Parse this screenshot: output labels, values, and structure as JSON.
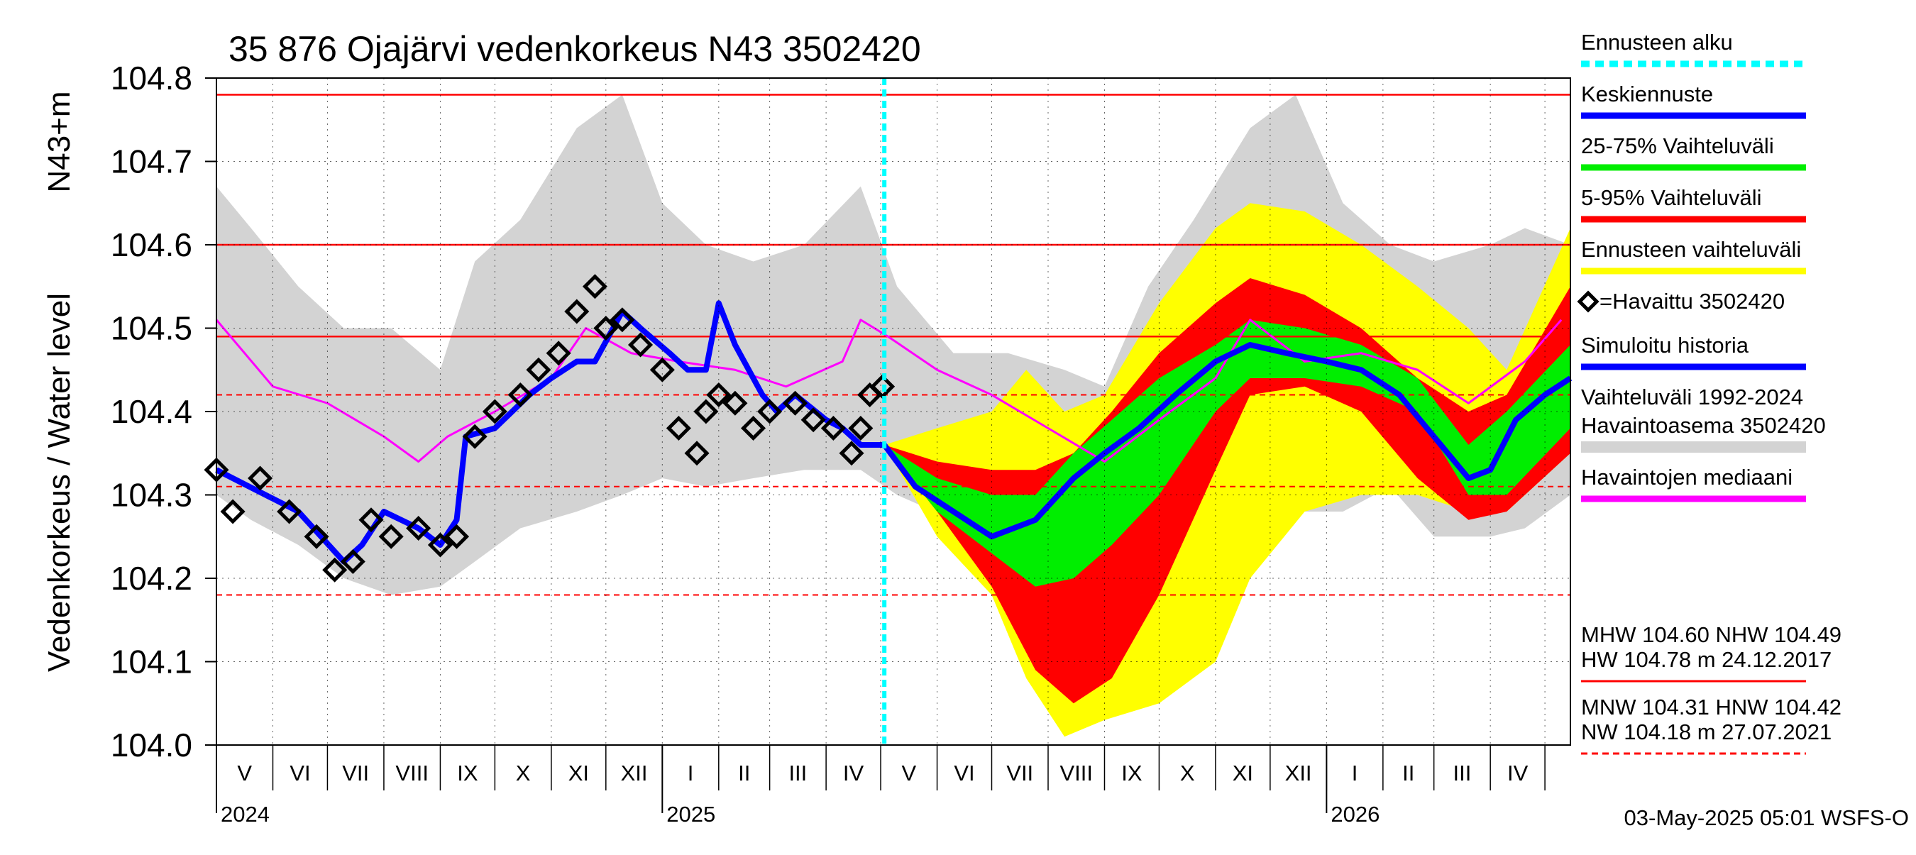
{
  "chart_data": {
    "type": "line",
    "title": "35 876 Ojajärvi vedenkorkeus N43 3502420",
    "ylabel_outer": "Vedenkorkeus / Water level",
    "ylabel_inner": "N43+m",
    "ylim": [
      104.0,
      104.8
    ],
    "yticks": [
      "104.0",
      "104.1",
      "104.2",
      "104.3",
      "104.4",
      "104.5",
      "104.6",
      "104.7",
      "104.8"
    ],
    "xlim": [
      "2024-05-01",
      "2026-05-15"
    ],
    "months": [
      "V",
      "VI",
      "VII",
      "VIII",
      "IX",
      "X",
      "XI",
      "XII",
      "I",
      "II",
      "III",
      "IV",
      "V",
      "VI",
      "VII",
      "VIII",
      "IX",
      "X",
      "XI",
      "XII",
      "I",
      "II",
      "III",
      "IV"
    ],
    "years": [
      "2024",
      "2025",
      "2026"
    ],
    "grid": true,
    "forecast_start": "2025-05-03",
    "reference_lines": {
      "MHW": 104.6,
      "NHW": 104.49,
      "HW": 104.78,
      "MNW": 104.31,
      "HNW": 104.42,
      "NW": 104.18
    },
    "series": {
      "observed": {
        "x": [
          "2024-05-01",
          "2024-05-10",
          "2024-05-25",
          "2024-06-10",
          "2024-06-25",
          "2024-07-05",
          "2024-07-15",
          "2024-07-25",
          "2024-08-05",
          "2024-08-20",
          "2024-09-01",
          "2024-09-10",
          "2024-09-20",
          "2024-10-01",
          "2024-10-15",
          "2024-10-25",
          "2024-11-05",
          "2024-11-15",
          "2024-11-25",
          "2024-12-01",
          "2024-12-10",
          "2024-12-20",
          "2025-01-01",
          "2025-01-10",
          "2025-01-20",
          "2025-01-25",
          "2025-02-01",
          "2025-02-10",
          "2025-02-20",
          "2025-03-01",
          "2025-03-15",
          "2025-03-25",
          "2025-04-05",
          "2025-04-15",
          "2025-04-20",
          "2025-04-25",
          "2025-05-02"
        ],
        "values": [
          104.33,
          104.28,
          104.32,
          104.28,
          104.25,
          104.21,
          104.22,
          104.27,
          104.25,
          104.26,
          104.24,
          104.25,
          104.37,
          104.4,
          104.42,
          104.45,
          104.47,
          104.52,
          104.55,
          104.5,
          104.51,
          104.48,
          104.45,
          104.38,
          104.35,
          104.4,
          104.42,
          104.41,
          104.38,
          104.4,
          104.41,
          104.39,
          104.38,
          104.35,
          104.38,
          104.42,
          104.43
        ]
      },
      "simulated_history": {
        "x": [
          "2024-05-01",
          "2024-06-15",
          "2024-07-10",
          "2024-07-20",
          "2024-08-01",
          "2024-08-20",
          "2024-09-01",
          "2024-09-10",
          "2024-09-15",
          "2024-10-01",
          "2024-10-20",
          "2024-11-01",
          "2024-11-15",
          "2024-11-25",
          "2024-12-10",
          "2024-12-20",
          "2025-01-05",
          "2025-01-15",
          "2025-01-25",
          "2025-02-01",
          "2025-02-10",
          "2025-02-25",
          "2025-03-05",
          "2025-03-15",
          "2025-04-01",
          "2025-04-10",
          "2025-04-20",
          "2025-05-03"
        ],
        "values": [
          104.33,
          104.28,
          104.22,
          104.24,
          104.28,
          104.26,
          104.24,
          104.27,
          104.37,
          104.38,
          104.42,
          104.44,
          104.46,
          104.46,
          104.52,
          104.5,
          104.47,
          104.45,
          104.45,
          104.53,
          104.48,
          104.42,
          104.4,
          104.42,
          104.39,
          104.38,
          104.36,
          104.36
        ]
      },
      "forecast_mean": {
        "x": [
          "2025-05-03",
          "2025-05-20",
          "2025-06-10",
          "2025-07-01",
          "2025-07-25",
          "2025-08-15",
          "2025-09-01",
          "2025-09-20",
          "2025-10-10",
          "2025-11-01",
          "2025-11-20",
          "2025-12-10",
          "2026-01-01",
          "2026-01-20",
          "2026-02-10",
          "2026-03-01",
          "2026-03-20",
          "2026-04-01",
          "2026-04-15",
          "2026-05-01",
          "2026-05-15"
        ],
        "values": [
          104.36,
          104.31,
          104.28,
          104.25,
          104.27,
          104.32,
          104.35,
          104.38,
          104.42,
          104.46,
          104.48,
          104.47,
          104.46,
          104.45,
          104.42,
          104.37,
          104.32,
          104.33,
          104.39,
          104.42,
          104.44
        ]
      },
      "median": {
        "x": [
          "2024-05-01",
          "2024-06-01",
          "2024-07-01",
          "2024-08-01",
          "2024-08-20",
          "2024-09-05",
          "2024-10-01",
          "2024-11-01",
          "2024-11-20",
          "2024-12-15",
          "2025-01-10",
          "2025-02-10",
          "2025-03-10",
          "2025-04-10",
          "2025-04-20",
          "2025-05-05",
          "2025-06-01",
          "2025-07-01",
          "2025-08-01",
          "2025-09-01",
          "2025-10-01",
          "2025-11-01",
          "2025-11-20",
          "2025-12-20",
          "2026-01-20",
          "2026-02-20",
          "2026-03-20",
          "2026-04-20",
          "2026-05-10"
        ],
        "values": [
          104.51,
          104.43,
          104.41,
          104.37,
          104.34,
          104.37,
          104.4,
          104.44,
          104.5,
          104.47,
          104.46,
          104.45,
          104.43,
          104.46,
          104.51,
          104.49,
          104.45,
          104.42,
          104.38,
          104.34,
          104.39,
          104.44,
          104.51,
          104.46,
          104.47,
          104.45,
          104.41,
          104.46,
          104.51
        ]
      }
    },
    "bands": {
      "history_range": {
        "x": [
          "2024-05-01",
          "2024-05-20",
          "2024-06-15",
          "2024-07-10",
          "2024-08-05",
          "2024-09-01",
          "2024-09-20",
          "2024-10-15",
          "2024-11-15",
          "2024-12-10",
          "2025-01-01",
          "2025-01-25",
          "2025-02-20",
          "2025-03-20",
          "2025-04-20",
          "2025-05-10",
          "2025-06-10",
          "2025-07-10",
          "2025-08-10",
          "2025-09-01",
          "2025-09-25",
          "2025-10-20",
          "2025-11-20",
          "2025-12-15",
          "2026-01-10",
          "2026-02-05",
          "2026-03-01",
          "2026-04-01",
          "2026-04-20",
          "2026-05-15"
        ],
        "high": [
          104.67,
          104.62,
          104.55,
          104.5,
          104.5,
          104.45,
          104.58,
          104.63,
          104.74,
          104.78,
          104.65,
          104.6,
          104.58,
          104.6,
          104.67,
          104.55,
          104.47,
          104.47,
          104.45,
          104.43,
          104.55,
          104.63,
          104.74,
          104.78,
          104.65,
          104.6,
          104.58,
          104.6,
          104.62,
          104.6
        ],
        "low": [
          104.3,
          104.27,
          104.24,
          104.2,
          104.18,
          104.19,
          104.22,
          104.26,
          104.28,
          104.3,
          104.32,
          104.31,
          104.32,
          104.33,
          104.33,
          104.3,
          104.27,
          104.22,
          104.19,
          104.18,
          104.22,
          104.22,
          104.26,
          104.28,
          104.28,
          104.31,
          104.25,
          104.25,
          104.26,
          104.3
        ]
      },
      "forecast_range": {
        "x": [
          "2025-05-03",
          "2025-06-01",
          "2025-07-01",
          "2025-07-20",
          "2025-08-10",
          "2025-09-01",
          "2025-10-01",
          "2025-11-01",
          "2025-11-20",
          "2025-12-20",
          "2026-01-20",
          "2026-02-20",
          "2026-03-20",
          "2026-04-10",
          "2026-05-15"
        ],
        "high": [
          104.36,
          104.38,
          104.4,
          104.45,
          104.4,
          104.42,
          104.53,
          104.62,
          104.65,
          104.64,
          104.6,
          104.55,
          104.5,
          104.45,
          104.62
        ],
        "low": [
          104.36,
          104.25,
          104.18,
          104.08,
          104.01,
          104.03,
          104.05,
          104.1,
          104.2,
          104.28,
          104.3,
          104.3,
          104.28,
          104.28,
          104.35
        ]
      },
      "p5_p95": {
        "x": [
          "2025-05-03",
          "2025-06-01",
          "2025-07-01",
          "2025-07-25",
          "2025-08-15",
          "2025-09-05",
          "2025-10-01",
          "2025-11-01",
          "2025-11-20",
          "2025-12-20",
          "2026-01-20",
          "2026-02-20",
          "2026-03-20",
          "2026-04-10",
          "2026-05-15"
        ],
        "high": [
          104.36,
          104.34,
          104.33,
          104.33,
          104.35,
          104.4,
          104.47,
          104.53,
          104.56,
          104.54,
          104.5,
          104.44,
          104.4,
          104.42,
          104.55
        ],
        "low": [
          104.36,
          104.28,
          104.19,
          104.09,
          104.05,
          104.08,
          104.18,
          104.33,
          104.42,
          104.43,
          104.4,
          104.32,
          104.27,
          104.28,
          104.35
        ]
      },
      "p25_p75": {
        "x": [
          "2025-05-03",
          "2025-06-01",
          "2025-07-01",
          "2025-07-25",
          "2025-08-15",
          "2025-09-05",
          "2025-10-01",
          "2025-11-01",
          "2025-11-20",
          "2025-12-20",
          "2026-01-20",
          "2026-02-20",
          "2026-03-20",
          "2026-04-10",
          "2026-05-15"
        ],
        "high": [
          104.36,
          104.32,
          104.3,
          104.3,
          104.35,
          104.39,
          104.44,
          104.48,
          104.51,
          104.5,
          104.48,
          104.44,
          104.36,
          104.4,
          104.48
        ],
        "low": [
          104.36,
          104.28,
          104.23,
          104.19,
          104.2,
          104.24,
          104.3,
          104.4,
          104.44,
          104.44,
          104.43,
          104.4,
          104.3,
          104.3,
          104.38
        ]
      }
    },
    "legend": [
      {
        "label": "Ennusteen alku",
        "color": "#00ffff",
        "style": "dashed"
      },
      {
        "label": "Keskiennuste",
        "color": "#0000ff",
        "style": "solid"
      },
      {
        "label": "25-75% Vaihteluväli",
        "color": "#00ee00",
        "style": "solid"
      },
      {
        "label": "5-95% Vaihteluväli",
        "color": "#ff0000",
        "style": "solid"
      },
      {
        "label": "Ennusteen vaihteluväli",
        "color": "#ffff00",
        "style": "solid"
      },
      {
        "label": "=Havaittu 3502420",
        "color": "#000000",
        "style": "diamond"
      },
      {
        "label": "Simuloitu historia",
        "color": "#0000ff",
        "style": "solid"
      },
      {
        "label": "Vaihteluväli 1992-2024",
        "label2": " Havaintoasema 3502420",
        "color": "#d3d3d3",
        "style": "solid"
      },
      {
        "label": "Havaintojen mediaani",
        "color": "#ff00ff",
        "style": "solid"
      }
    ],
    "stats_text": {
      "line1": "MHW 104.60 NHW 104.49",
      "line2": "HW 104.78 m 24.12.2017",
      "line3": "MNW 104.31 HNW 104.42",
      "line4": "NW 104.18 m 27.07.2021"
    },
    "timestamp": "03-May-2025 05:01 WSFS-O"
  }
}
